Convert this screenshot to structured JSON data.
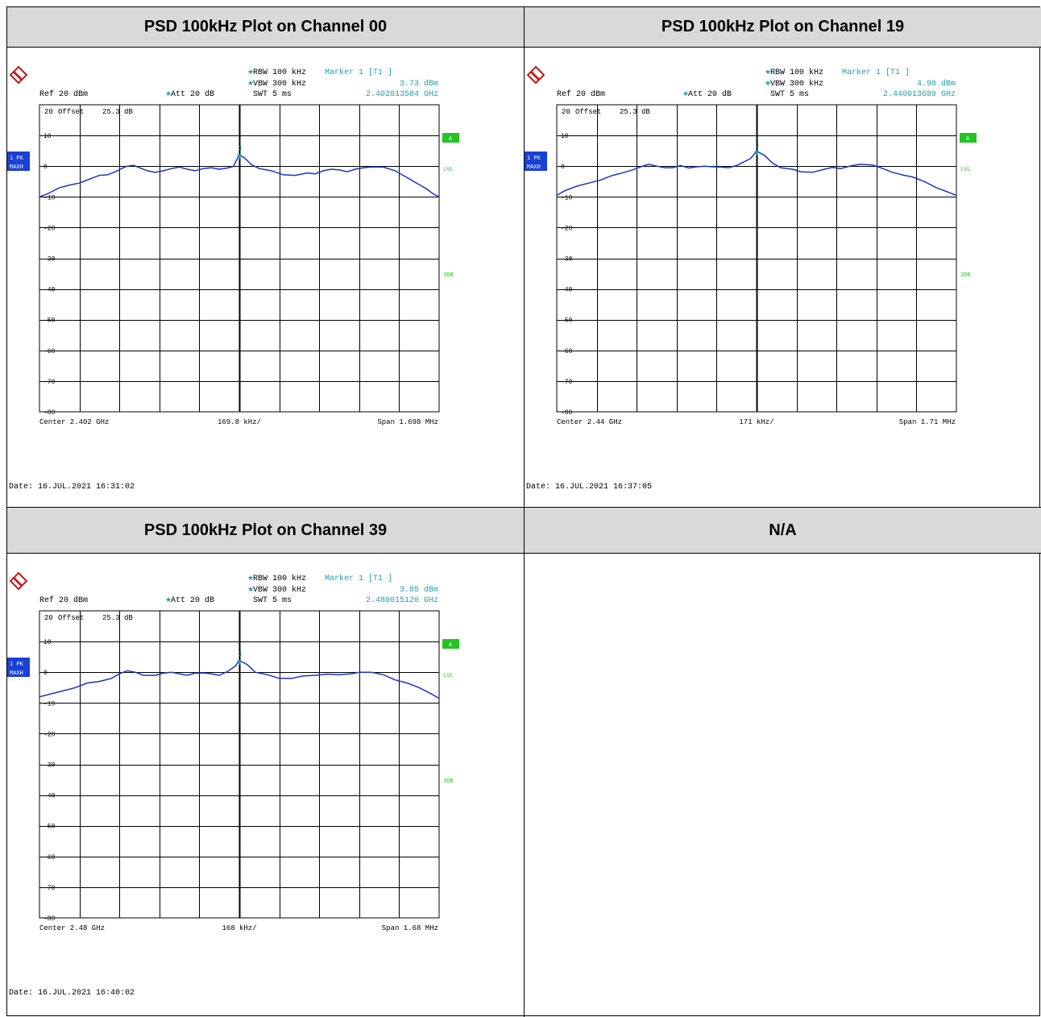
{
  "headers": [
    "PSD 100kHz Plot on Channel 00",
    "PSD 100kHz Plot on Channel 19",
    "PSD 100kHz Plot on Channel 39",
    "N/A"
  ],
  "colors": {
    "trace": "#1a33cc",
    "cyan": "#1fa0a8",
    "green": "#22c322",
    "badge_blue": "#1a40d8",
    "grid": "#000000",
    "header_bg": "#d9d9d9"
  },
  "icons": {
    "logo": "rohde-schwarz-logo-icon"
  },
  "common": {
    "ref": "Ref  20 dBm",
    "att": "Att  20 dB",
    "rbw": "RBW 100 kHz",
    "vbw": "VBW 300 kHz",
    "swt": "SWT 5 ms",
    "marker_label": "Marker 1 [T1 ]",
    "offset_row": [
      "20",
      "Offset",
      "25.3 dB"
    ],
    "trace_badge": [
      "1 PK",
      "MAXH"
    ],
    "right_labels": [
      "A",
      "LVL",
      "3DB"
    ],
    "y_tick_labels": [
      "10",
      "0",
      "-10",
      "-20",
      "-30",
      "-40",
      "-50",
      "-60",
      "-70",
      "-80"
    ],
    "marker_number": "1"
  },
  "chart_data": [
    {
      "type": "line",
      "title": "PSD 100kHz Plot on Channel 00",
      "xlabel_center": "Center 2.402 GHz",
      "xlabel_div": "169.8 kHz/",
      "xlabel_span": "Span 1.698 MHz",
      "marker_level": "3.73 dBm",
      "marker_freq": "2.402013584 GHz",
      "date": "Date: 16.JUL.2021  16:31:02",
      "ylim": [
        -80,
        20
      ],
      "x_div": [
        0,
        10
      ],
      "marker": {
        "x": 5.0,
        "y": 3.73
      },
      "series": [
        {
          "values": [
            [
              0,
              -10
            ],
            [
              0.2,
              -9
            ],
            [
              0.5,
              -7
            ],
            [
              0.8,
              -6
            ],
            [
              1.0,
              -5.5
            ],
            [
              1.2,
              -4.5
            ],
            [
              1.5,
              -3
            ],
            [
              1.7,
              -2.8
            ],
            [
              1.9,
              -1.8
            ],
            [
              2.1,
              -0.5
            ],
            [
              2.2,
              0
            ],
            [
              2.35,
              0.3
            ],
            [
              2.5,
              -0.5
            ],
            [
              2.7,
              -1.5
            ],
            [
              2.9,
              -2
            ],
            [
              3.1,
              -1.5
            ],
            [
              3.3,
              -0.8
            ],
            [
              3.5,
              -0.3
            ],
            [
              3.7,
              -1
            ],
            [
              3.9,
              -1.5
            ],
            [
              4.1,
              -0.8
            ],
            [
              4.3,
              -0.5
            ],
            [
              4.5,
              -1
            ],
            [
              4.7,
              -0.6
            ],
            [
              4.85,
              -0.1
            ],
            [
              5.0,
              3.73
            ],
            [
              5.15,
              2.5
            ],
            [
              5.3,
              0.5
            ],
            [
              5.5,
              -0.8
            ],
            [
              5.8,
              -1.5
            ],
            [
              6.1,
              -2.8
            ],
            [
              6.4,
              -3
            ],
            [
              6.7,
              -2.2
            ],
            [
              6.9,
              -2.5
            ],
            [
              7.1,
              -1.5
            ],
            [
              7.3,
              -1
            ],
            [
              7.5,
              -1.2
            ],
            [
              7.7,
              -1.8
            ],
            [
              7.9,
              -1
            ],
            [
              8.1,
              -0.5
            ],
            [
              8.3,
              -0.3
            ],
            [
              8.6,
              -0.3
            ],
            [
              8.9,
              -1.5
            ],
            [
              9.1,
              -3
            ],
            [
              9.3,
              -4.5
            ],
            [
              9.5,
              -6
            ],
            [
              9.7,
              -7.5
            ],
            [
              9.85,
              -9
            ],
            [
              10,
              -10
            ]
          ]
        }
      ]
    },
    {
      "type": "line",
      "title": "PSD 100kHz Plot on Channel 19",
      "xlabel_center": "Center 2.44 GHz",
      "xlabel_div": "171 kHz/",
      "xlabel_span": "Span 1.71 MHz",
      "marker_level": "4.90 dBm",
      "marker_freq": "2.440013680 GHz",
      "date": "Date: 16.JUL.2021  16:37:05",
      "ylim": [
        -80,
        20
      ],
      "x_div": [
        0,
        10
      ],
      "marker": {
        "x": 5.0,
        "y": 4.9
      },
      "series": [
        {
          "values": [
            [
              0,
              -9.5
            ],
            [
              0.2,
              -8
            ],
            [
              0.5,
              -6.5
            ],
            [
              0.8,
              -5.5
            ],
            [
              1.1,
              -4.5
            ],
            [
              1.4,
              -3
            ],
            [
              1.7,
              -2
            ],
            [
              1.9,
              -1.2
            ],
            [
              2.1,
              -0.2
            ],
            [
              2.3,
              0.6
            ],
            [
              2.5,
              0
            ],
            [
              2.7,
              -0.5
            ],
            [
              2.9,
              -0.5
            ],
            [
              3.1,
              0.2
            ],
            [
              3.3,
              -0.6
            ],
            [
              3.5,
              -0.2
            ],
            [
              3.7,
              0
            ],
            [
              3.9,
              -0.2
            ],
            [
              4.1,
              -0.3
            ],
            [
              4.3,
              -0.5
            ],
            [
              4.5,
              0.2
            ],
            [
              4.7,
              1.5
            ],
            [
              4.85,
              2.5
            ],
            [
              5.0,
              4.9
            ],
            [
              5.2,
              3.5
            ],
            [
              5.4,
              1
            ],
            [
              5.6,
              -0.5
            ],
            [
              5.9,
              -1
            ],
            [
              6.1,
              -1.8
            ],
            [
              6.4,
              -2
            ],
            [
              6.7,
              -1
            ],
            [
              6.9,
              -0.4
            ],
            [
              7.1,
              -0.8
            ],
            [
              7.4,
              0.2
            ],
            [
              7.6,
              0.6
            ],
            [
              7.9,
              0.4
            ],
            [
              8.1,
              -0.5
            ],
            [
              8.4,
              -2
            ],
            [
              8.7,
              -3
            ],
            [
              8.9,
              -3.5
            ],
            [
              9.2,
              -5
            ],
            [
              9.5,
              -7
            ],
            [
              9.8,
              -8.5
            ],
            [
              10,
              -9.5
            ]
          ]
        }
      ]
    },
    {
      "type": "line",
      "title": "PSD 100kHz Plot on Channel 39",
      "xlabel_center": "Center 2.48 GHz",
      "xlabel_div": "168 kHz/",
      "xlabel_span": "Span 1.68 MHz",
      "marker_level": "3.85 dBm",
      "marker_freq": "2.480015120 GHz",
      "date": "Date: 16.JUL.2021  16:40:02",
      "ylim": [
        -80,
        20
      ],
      "x_div": [
        0,
        10
      ],
      "marker": {
        "x": 5.0,
        "y": 3.85
      },
      "series": [
        {
          "values": [
            [
              0,
              -8
            ],
            [
              0.3,
              -7
            ],
            [
              0.6,
              -6
            ],
            [
              0.9,
              -5
            ],
            [
              1.2,
              -3.5
            ],
            [
              1.5,
              -3
            ],
            [
              1.8,
              -2
            ],
            [
              2.0,
              -0.5
            ],
            [
              2.2,
              0.5
            ],
            [
              2.4,
              0
            ],
            [
              2.6,
              -1
            ],
            [
              2.9,
              -1
            ],
            [
              3.1,
              -0.3
            ],
            [
              3.3,
              0
            ],
            [
              3.5,
              -0.5
            ],
            [
              3.7,
              -1
            ],
            [
              3.9,
              -0.3
            ],
            [
              4.1,
              -0.2
            ],
            [
              4.3,
              -0.5
            ],
            [
              4.5,
              -1
            ],
            [
              4.7,
              0.2
            ],
            [
              4.9,
              2
            ],
            [
              5.0,
              3.85
            ],
            [
              5.2,
              2.5
            ],
            [
              5.4,
              0
            ],
            [
              5.7,
              -0.8
            ],
            [
              6.0,
              -2
            ],
            [
              6.3,
              -2
            ],
            [
              6.6,
              -1.2
            ],
            [
              6.9,
              -1
            ],
            [
              7.2,
              -0.6
            ],
            [
              7.5,
              -0.8
            ],
            [
              7.8,
              -0.5
            ],
            [
              8.0,
              0
            ],
            [
              8.3,
              0
            ],
            [
              8.6,
              -0.8
            ],
            [
              8.9,
              -2.5
            ],
            [
              9.2,
              -3.5
            ],
            [
              9.5,
              -5
            ],
            [
              9.8,
              -7
            ],
            [
              10,
              -8.5
            ]
          ]
        }
      ]
    }
  ]
}
